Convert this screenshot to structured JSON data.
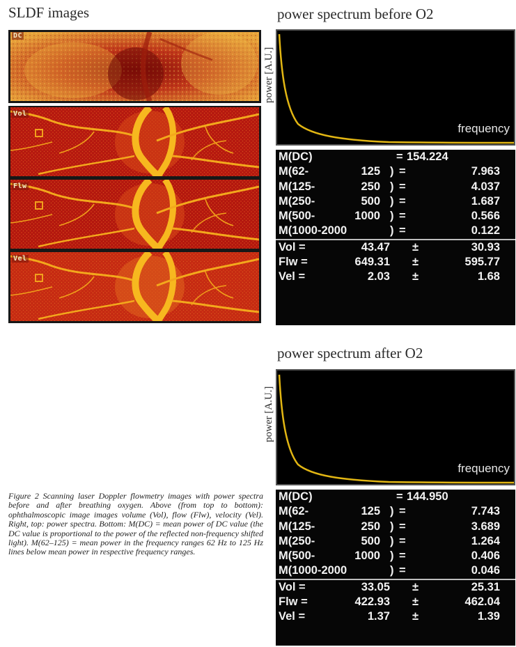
{
  "sldf": {
    "title": "SLDF images",
    "panels": [
      {
        "label": "DC"
      },
      {
        "label": "Vol"
      },
      {
        "label": "Flw"
      },
      {
        "label": "Vel"
      }
    ]
  },
  "spectra": [
    {
      "title": "power spectrum before O2",
      "ylabel": "power [A.U.]",
      "xlabel": "frequency",
      "dc": {
        "label": "M(DC)",
        "eq": "=",
        "value": "154.224"
      },
      "ranges": [
        {
          "label": "M(62-",
          "hi": "125",
          "value": "7.963"
        },
        {
          "label": "M(125-",
          "hi": "250",
          "value": "4.037"
        },
        {
          "label": "M(250-",
          "hi": "500",
          "value": "1.687"
        },
        {
          "label": "M(500-",
          "hi": "1000",
          "value": "0.566"
        },
        {
          "label": "M(1000-2000",
          "hi": "",
          "value": "0.122"
        }
      ],
      "stats": [
        {
          "label": "Vol =",
          "mean": "43.47",
          "pm": "±",
          "sd": "30.93"
        },
        {
          "label": "Flw =",
          "mean": "649.31",
          "pm": "±",
          "sd": "595.77"
        },
        {
          "label": "Vel =",
          "mean": "2.03",
          "pm": "±",
          "sd": "1.68"
        }
      ]
    },
    {
      "title": "power spectrum after O2",
      "ylabel": "power [A.U.]",
      "xlabel": "frequency",
      "dc": {
        "label": "M(DC)",
        "eq": "=",
        "value": "144.950"
      },
      "ranges": [
        {
          "label": "M(62-",
          "hi": "125",
          "value": "7.743"
        },
        {
          "label": "M(125-",
          "hi": "250",
          "value": "3.689"
        },
        {
          "label": "M(250-",
          "hi": "500",
          "value": "1.264"
        },
        {
          "label": "M(500-",
          "hi": "1000",
          "value": "0.406"
        },
        {
          "label": "M(1000-2000",
          "hi": "",
          "value": "0.046"
        }
      ],
      "stats": [
        {
          "label": "Vol =",
          "mean": "33.05",
          "pm": "±",
          "sd": "25.31"
        },
        {
          "label": "Flw =",
          "mean": "422.93",
          "pm": "±",
          "sd": "462.04"
        },
        {
          "label": "Vel =",
          "mean": "1.37",
          "pm": "±",
          "sd": "1.39"
        }
      ]
    }
  ],
  "caption": "Figure 2 Scanning laser Doppler flowmetry images with power spectra before and after breathing oxygen. Above (from top to bottom): ophthalmoscopic image images volume (Vol), flow (Flw), velocity (Vel). Right, top: power spectra. Bottom: M(DC) = mean power of DC value (the DC value is proportional to the power of the reflected non-frequency shifted light). M(62–125) = mean power in the frequency ranges 62 Hz to 125 Hz lines below mean power in respective frequency ranges.",
  "colors": {
    "vessel": "#f7b81f",
    "background_red": "#b5180f",
    "spectrum_curve": "#e2b613",
    "plot_bg": "#000000",
    "table_bg": "#060606"
  }
}
